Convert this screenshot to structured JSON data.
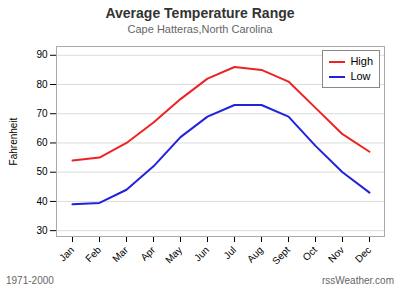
{
  "chart_data": {
    "type": "line",
    "title": "Average Temperature Range",
    "subtitle": "Cape Hatteras,North Carolina",
    "categories": [
      "Jan",
      "Feb",
      "Mar",
      "Apr",
      "May",
      "Jun",
      "Jul",
      "Aug",
      "Sept",
      "Oct",
      "Nov",
      "Dec"
    ],
    "series": [
      {
        "name": "High",
        "color": "#ee2222",
        "values": [
          54,
          55,
          60,
          67,
          75,
          82,
          86,
          85,
          81,
          72,
          63,
          57
        ]
      },
      {
        "name": "Low",
        "color": "#2222dd",
        "values": [
          39,
          39.5,
          44,
          52,
          62,
          69,
          73,
          73,
          69,
          59,
          50,
          43
        ]
      }
    ],
    "ylabel": "Fahrenheit",
    "ylim": [
      28,
      93
    ],
    "yticks": [
      30,
      40,
      50,
      60,
      70,
      80,
      90
    ],
    "grid": true,
    "legend": "upper right",
    "annotations": [
      "1971-2000",
      "rssWeather.com"
    ]
  }
}
